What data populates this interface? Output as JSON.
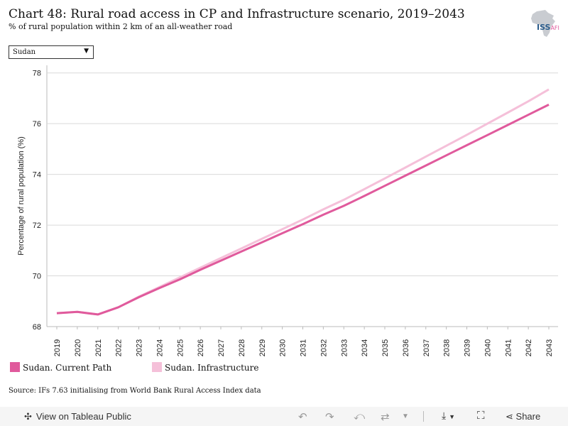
{
  "header": {
    "title": "Chart 48: Rural road access in CP and Infrastructure scenario, 2019–2043",
    "subtitle": "% of rural population within 2 km of an all-weather road",
    "logo_text": "ISS",
    "logo_text_suffix": "AFI"
  },
  "filter": {
    "selected": "Sudan"
  },
  "chart_data": {
    "type": "line",
    "title": "Chart 48: Rural road access in CP and Infrastructure scenario, 2019–2043",
    "subtitle": "% of rural population within 2 km of an all-weather road",
    "xlabel": "",
    "ylabel": "Percentage of rural population (%)",
    "ylim": [
      68,
      78.3
    ],
    "yticks": [
      68,
      70,
      72,
      74,
      76,
      78
    ],
    "x": [
      2019,
      2020,
      2021,
      2022,
      2023,
      2024,
      2025,
      2026,
      2027,
      2028,
      2029,
      2030,
      2031,
      2032,
      2033,
      2034,
      2035,
      2036,
      2037,
      2038,
      2039,
      2040,
      2041,
      2042,
      2043
    ],
    "grid": true,
    "legend": "bottom-left",
    "series": [
      {
        "name": "Sudan. Current Path",
        "color": "#e05a9c",
        "values": [
          68.53,
          68.58,
          68.48,
          68.76,
          69.16,
          69.52,
          69.86,
          70.24,
          70.6,
          70.96,
          71.32,
          71.68,
          72.04,
          72.41,
          72.76,
          73.15,
          73.55,
          73.95,
          74.35,
          74.75,
          75.15,
          75.55,
          75.95,
          76.35,
          76.75
        ]
      },
      {
        "name": "Sudan. Infrastructure",
        "color": "#f5c0d9",
        "values": [
          68.53,
          68.58,
          68.48,
          68.76,
          69.18,
          69.56,
          69.94,
          70.32,
          70.7,
          71.08,
          71.46,
          71.84,
          72.22,
          72.62,
          73.0,
          73.42,
          73.84,
          74.27,
          74.7,
          75.13,
          75.56,
          76.0,
          76.44,
          76.88,
          77.35
        ]
      }
    ]
  },
  "source": "Source: IFs 7.63 initialising from World Bank Rural Access Index data",
  "toolbar": {
    "view_label": "View on Tableau Public",
    "share_label": "Share"
  }
}
